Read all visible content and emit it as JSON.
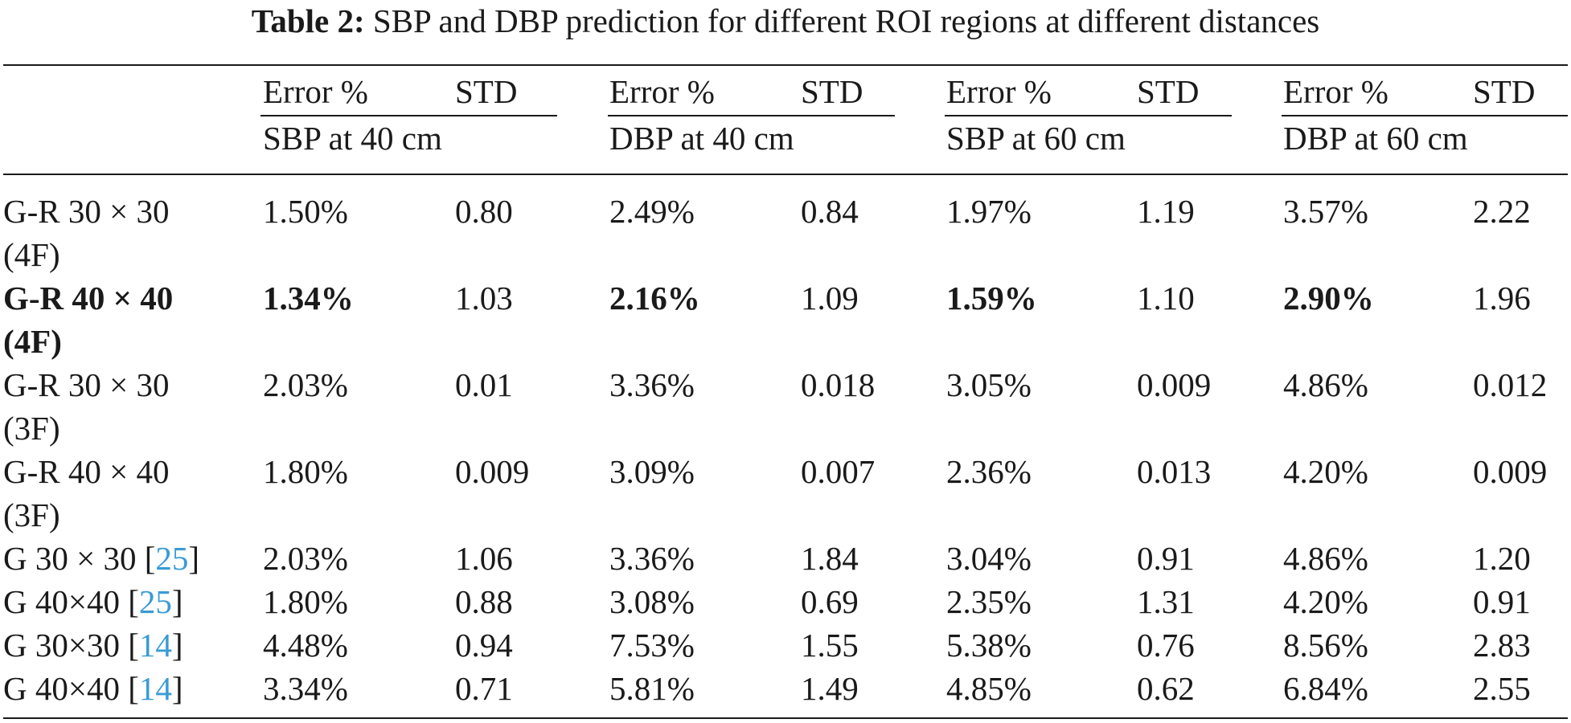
{
  "caption": {
    "label": "Table 2:",
    "text": "SBP and DBP prediction for different ROI regions at different distances"
  },
  "columns": {
    "sub_error": "Error %",
    "sub_std": "STD",
    "groups": [
      "SBP at 40 cm",
      "DBP at 40 cm",
      "SBP at 60 cm",
      "DBP at 60 cm"
    ]
  },
  "rows": [
    {
      "name_a": "G-R 30 × 30",
      "name_b": "(4F)",
      "ref": "",
      "vals": [
        "1.50%",
        "0.80",
        "2.49%",
        "0.84",
        "1.97%",
        "1.19",
        "3.57%",
        "2.22"
      ]
    },
    {
      "name_a": "G-R 40 × 40",
      "name_b": "(4F)",
      "ref": "",
      "vals": [
        "1.34%",
        "1.03",
        "2.16%",
        "1.09",
        "1.59%",
        "1.10",
        "2.90%",
        "1.96"
      ]
    },
    {
      "name_a": "G-R 30 × 30",
      "name_b": "(3F)",
      "ref": "",
      "vals": [
        "2.03%",
        "0.01",
        "3.36%",
        "0.018",
        "3.05%",
        "0.009",
        "4.86%",
        "0.012"
      ]
    },
    {
      "name_a": "G-R 40 × 40",
      "name_b": "(3F)",
      "ref": "",
      "vals": [
        "1.80%",
        "0.009",
        "3.09%",
        "0.007",
        "2.36%",
        "0.013",
        "4.20%",
        "0.009"
      ]
    },
    {
      "name_a": "G 30 × 30 [",
      "ref": "25",
      "name_c": "]",
      "vals": [
        "2.03%",
        "1.06",
        "3.36%",
        "1.84",
        "3.04%",
        "0.91",
        "4.86%",
        "1.20"
      ]
    },
    {
      "name_a": "G 40×40 [",
      "ref": "25",
      "name_c": "]",
      "vals": [
        "1.80%",
        "0.88",
        "3.08%",
        "0.69",
        "2.35%",
        "1.31",
        "4.20%",
        "0.91"
      ]
    },
    {
      "name_a": "G 30×30 [",
      "ref": "14",
      "name_c": "]",
      "vals": [
        "4.48%",
        "0.94",
        "7.53%",
        "1.55",
        "5.38%",
        "0.76",
        "8.56%",
        "2.83"
      ]
    },
    {
      "name_a": "G 40×40 [",
      "ref": "14",
      "name_c": "]",
      "vals": [
        "3.34%",
        "0.71",
        "5.81%",
        "1.49",
        "4.85%",
        "0.62",
        "6.84%",
        "2.55"
      ]
    }
  ]
}
